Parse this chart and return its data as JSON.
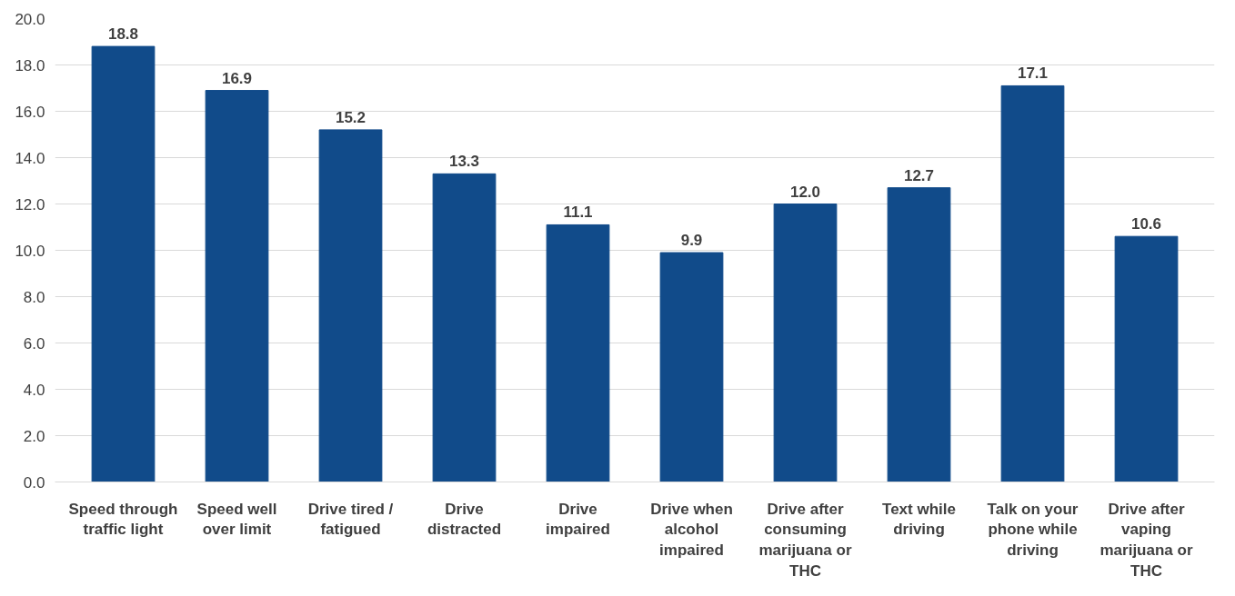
{
  "chart_data": {
    "type": "bar",
    "categories": [
      "Speed through traffic light",
      "Speed well over limit",
      "Drive tired / fatigued",
      "Drive distracted",
      "Drive impaired",
      "Drive when alcohol impaired",
      "Drive after consuming marijuana or THC",
      "Text while driving",
      "Talk on your phone while driving",
      "Drive after vaping marijuana or THC"
    ],
    "values": [
      18.8,
      16.9,
      15.2,
      13.3,
      11.1,
      9.9,
      12.0,
      12.7,
      17.1,
      10.6
    ],
    "value_labels": [
      "18.8",
      "16.9",
      "15.2",
      "13.3",
      "11.1",
      "9.9",
      "12.0",
      "12.7",
      "17.1",
      "10.6"
    ],
    "color": "#114b8a",
    "ylim": [
      0,
      20
    ],
    "yticks": [
      {
        "value": 0,
        "label": "0.0"
      },
      {
        "value": 2,
        "label": "2.0"
      },
      {
        "value": 4,
        "label": "4.0"
      },
      {
        "value": 6,
        "label": "6.0"
      },
      {
        "value": 8,
        "label": "8.0"
      },
      {
        "value": 10,
        "label": "10.0"
      },
      {
        "value": 12,
        "label": "12.0"
      },
      {
        "value": 14,
        "label": "14.0"
      },
      {
        "value": 16,
        "label": "16.0"
      },
      {
        "value": 18,
        "label": "18.0"
      },
      {
        "value": 20,
        "label": "20.0"
      }
    ],
    "grid": "y"
  }
}
